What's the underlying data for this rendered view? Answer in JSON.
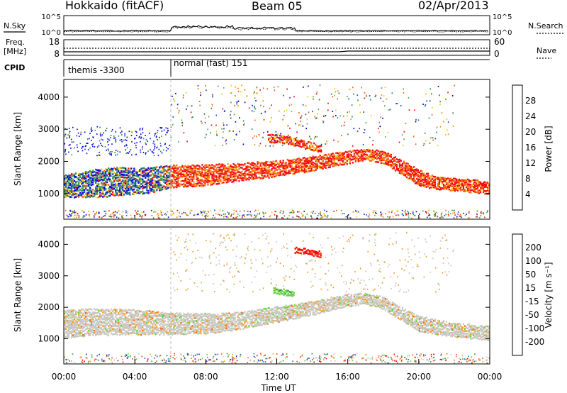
{
  "header": {
    "title": "Hokkaido (fitACF)",
    "beam": "Beam 05",
    "date": "02/Apr/2013"
  },
  "strips": {
    "nsky_label": "N.Sky",
    "nsky_ticks": [
      "10^5",
      "10^0"
    ],
    "nsearch_label": "N.Search",
    "freq_label_1": "Freq.",
    "freq_label_2": "[MHz]",
    "freq_ticks": [
      "18",
      "8"
    ],
    "nave_label": "Nave",
    "nave_ticks": [
      "60",
      "0"
    ],
    "cpid_label": "CPID",
    "cpid_segments": [
      {
        "label": "themis -3300",
        "start_hour": 0
      },
      {
        "label": "normal (fast) 151",
        "start_hour": 6.0
      }
    ]
  },
  "colors": {
    "power_scale": [
      "#0a0ae0",
      "#1f4fb3",
      "#2f8c4f",
      "#56a858",
      "#f0ca10",
      "#f5930b",
      "#f56410",
      "#f01010"
    ],
    "velocity_scale": [
      "#1c30b8",
      "#2f6ec0",
      "#3a9c48",
      "#66d43c",
      "#c9c7bf",
      "#f2a12a",
      "#f5711b",
      "#f24514",
      "#f00a0a"
    ]
  },
  "chart_data": [
    {
      "type": "heatmap",
      "panel": "power",
      "ylabel": "Slant Range [km]",
      "yticks": [
        "1000",
        "2000",
        "3000",
        "4000"
      ],
      "ylim": [
        200,
        4550
      ],
      "xlim_hours": [
        0,
        24
      ],
      "colorbar_label": "Power [dB]",
      "colorbar_ticks": [
        "4",
        "8",
        "12",
        "16",
        "20",
        "24",
        "28"
      ],
      "colorbar_range": [
        0,
        32
      ],
      "bands": [
        {
          "hours": [
            0,
            1,
            2,
            3,
            4,
            5,
            6
          ],
          "center_km": [
            1250,
            1300,
            1350,
            1400,
            1400,
            1450,
            1550
          ],
          "width_km": [
            700,
            800,
            900,
            900,
            800,
            800,
            700
          ],
          "dominant": "mixed-low"
        },
        {
          "hours": [
            6,
            8,
            10,
            12,
            14,
            16,
            17,
            18,
            19,
            20,
            21,
            22,
            24
          ],
          "center_km": [
            1550,
            1600,
            1700,
            1800,
            1950,
            2150,
            2250,
            2150,
            1850,
            1500,
            1350,
            1300,
            1200
          ],
          "width_km": [
            700,
            650,
            550,
            500,
            450,
            400,
            350,
            400,
            450,
            500,
            400,
            400,
            400
          ],
          "dominant": "high"
        },
        {
          "hours": [
            11.5,
            12.5,
            13.5,
            14.5
          ],
          "center_km": [
            2750,
            2700,
            2550,
            2400
          ],
          "width_km": [
            250,
            250,
            250,
            250
          ],
          "dominant": "high"
        }
      ]
    },
    {
      "type": "heatmap",
      "panel": "velocity",
      "ylabel": "Slant Range [km]",
      "yticks": [
        "1000",
        "2000",
        "3000",
        "4000"
      ],
      "ylim": [
        200,
        4550
      ],
      "xlim_hours": [
        0,
        24
      ],
      "xlabel": "Time UT",
      "xticks": [
        "00:00",
        "04:00",
        "08:00",
        "12:00",
        "16:00",
        "20:00",
        "00:00"
      ],
      "colorbar_label": "Velocity [m s⁻¹]",
      "colorbar_ticks": [
        "200",
        "100",
        "50",
        "15",
        "-15",
        "-50",
        "-100",
        "-200"
      ],
      "colorbar_range": [
        -250,
        250
      ],
      "bands": [
        {
          "hours": [
            0,
            2,
            4,
            6,
            8,
            10,
            12,
            14,
            16,
            17,
            18,
            19,
            20,
            22,
            24
          ],
          "center_km": [
            1500,
            1550,
            1550,
            1500,
            1500,
            1600,
            1800,
            2000,
            2250,
            2300,
            2150,
            1800,
            1500,
            1300,
            1200
          ],
          "width_km": [
            900,
            850,
            800,
            700,
            650,
            550,
            500,
            450,
            400,
            350,
            400,
            450,
            500,
            450,
            450
          ],
          "dominant": "near-zero"
        },
        {
          "hours": [
            13,
            13.5,
            14,
            14.5
          ],
          "center_km": [
            3850,
            3800,
            3750,
            3700
          ],
          "width_km": [
            200,
            200,
            200,
            200
          ],
          "dominant": "negative"
        },
        {
          "hours": [
            11.8,
            12.4,
            13.0
          ],
          "center_km": [
            2550,
            2500,
            2450
          ],
          "width_km": [
            200,
            200,
            200
          ],
          "dominant": "positive"
        }
      ]
    }
  ]
}
